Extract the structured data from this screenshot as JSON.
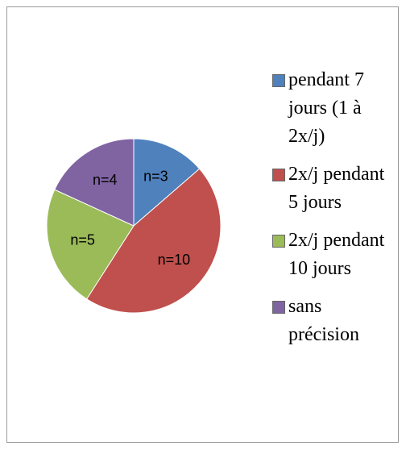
{
  "chart_data": {
    "type": "pie",
    "categories": [
      "pendant 7 jours (1 à 2x/j)",
      "2x/j pendant 5 jours",
      "2x/j pendant 10 jours",
      "sans précision"
    ],
    "values": [
      3,
      10,
      5,
      4
    ],
    "value_labels": [
      "n=3",
      "n=10",
      "n=5",
      "n=4"
    ],
    "colors": [
      "#4f81bd",
      "#c0504d",
      "#9bbb59",
      "#8064a2"
    ],
    "legend": "right"
  }
}
